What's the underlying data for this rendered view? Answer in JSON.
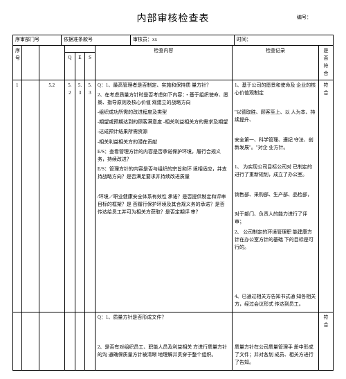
{
  "doc": {
    "title": "内部审核检查表",
    "number_label": "编号：",
    "meta": {
      "dept_label": "序审部门号",
      "std_label": "依据准条款号",
      "auditor_label": "审核员：",
      "auditor_value": "xx",
      "time_label": "时间："
    },
    "head": {
      "seq": "序号",
      "sub1": "Q",
      "sub2": "E",
      "sub3": "S",
      "content": "检查内容",
      "record": "检查记录",
      "conform": "是否符合"
    },
    "row1": {
      "seq": "1",
      "dept": "",
      "std": "5.2",
      "sub1": "5.2",
      "sub2": "5.3",
      "sub3": "5.3",
      "content_lines": [
        "Q：1、最高管理者是否制定、实施和保持质 量方针？",
        "2、在考虑质量方针时是否考虑如下内容：・基于组织使命、愿景、指导原则及核心价值 观建立的战略方向",
        "-组织成功所需的改进程度及类型",
        "-期望或预期达到的顾客满意度 -相关利益相关方的需求及期望",
        "-达成预计结果所需资源",
        "-相关利益相关方的潜在贡献",
        "E/S：查看管理方针的内容是否承诺保护环境，履行合规义务，持续改进？",
        "E/S：管理方针的内容是否与组织的宗旨和环 境相适应，并支持战略方向？是否满足要求并持续改进质量",
        "",
        "/环境／职业健康安全体系有效性 承诺？是否提供制定和评审目标的框架？是 否履行保护环境及其合规义务的承诺？是否 传达给员工并可为相关方获取？是否定期评 审？"
      ],
      "record_lines": [
        "1、基于公司的愿景和使命及 企业的核心价值观制定",
        "",
        "\"以德取胜、顾客至上、以 人为本、持续提升、",
        "",
        "安全第一、科学管理、遵纪 守法、创新发展\"。\"对企 业方针。",
        "",
        "1、 为实现公司目标公司对 已制定的进行了重新规划，成立了办公室。",
        "",
        "销售部、采购部、生产部、品检部，",
        "",
        "对于部门、负责人的能力进行了评审；",
        "2、 公司制定的环境管理职 能建康方针在办公室方针的基础 下的目标是可行的。",
        "",
        "",
        "",
        "",
        "4、已通过相关方告知书式通 知各相关方，经过会议形式 传达到员工。"
      ],
      "conform": "符合"
    },
    "row2": {
      "content_lines": [
        "Q：1、质量方针是否形成文件？",
        "",
        "",
        "2、是否有对组织员工、职能人员及利益相关   方进行质量方针的沟 通确保质量方针被清晰  地理解并贯穿于整个组织。"
      ],
      "record_lines": [
        "",
        "",
        "",
        "质量方针在公司质量管理手 册中形成了文件；并对各划 成员、相关方进行了告知。"
      ],
      "conform": "符合"
    }
  }
}
